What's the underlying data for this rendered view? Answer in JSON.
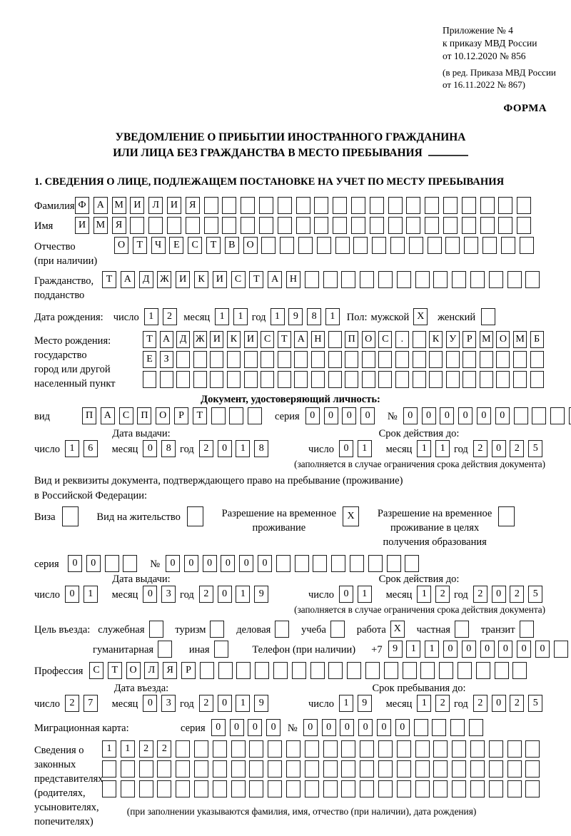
{
  "colors": {
    "background": "#ffffff",
    "ink": "#000000"
  },
  "appendix": {
    "lines": [
      "Приложение № 4",
      "к приказу МВД России",
      "от 10.12.2020 № 856"
    ],
    "edition_lines": [
      "(в ред. Приказа МВД России",
      "от 16.11.2022 № 867)"
    ],
    "form_label": "ФОРМА"
  },
  "title": {
    "line1": "УВЕДОМЛЕНИЕ О ПРИБЫТИИ ИНОСТРАННОГО ГРАЖДАНИНА",
    "line2": "ИЛИ ЛИЦА БЕЗ ГРАЖДАНСТВА В МЕСТО ПРЕБЫВАНИЯ"
  },
  "section1_heading": "1. СВЕДЕНИЯ О ЛИЦЕ, ПОДЛЕЖАЩЕМ ПОСТАНОВКЕ НА УЧЕТ ПО МЕСТУ ПРЕБЫВАНИЯ",
  "fields": {
    "surname": {
      "label": "Фамилия",
      "boxes": {
        "value": "ФАМИЛИЯ",
        "count": 25
      }
    },
    "firstname": {
      "label": "Имя",
      "boxes": {
        "value": "ИМЯ",
        "count": 25
      }
    },
    "patronymic": {
      "label": "Отчество",
      "label2": "(при наличии)",
      "boxes": {
        "value": "ОТЧЕСТВО",
        "count": 23
      }
    },
    "citizenship": {
      "label": "Гражданство,",
      "label2": "подданство",
      "boxes": {
        "value": "ТАДЖИКИСТАН",
        "count": 24
      }
    },
    "birth": {
      "label": "Дата рождения:",
      "day_label": "число",
      "day": {
        "value": "12",
        "count": 2
      },
      "month_label": "месяц",
      "month": {
        "value": "11",
        "count": 2
      },
      "year_label": "год",
      "year": {
        "value": "1981",
        "count": 4
      },
      "sex_label": "Пол:",
      "male_label": "мужской",
      "male_box": {
        "value": "X",
        "count": 1
      },
      "female_label": "женский",
      "female_box": {
        "value": "",
        "count": 1
      }
    },
    "birthplace": {
      "labels": [
        "Место рождения:",
        "государство",
        "город или другой",
        "населенный пункт"
      ],
      "row1": {
        "value": "ТАДЖИКИСТАН ПОС. КУРМОМБ",
        "count": 24
      },
      "row2": {
        "value": "ЕЗ",
        "count": 24
      },
      "row3": {
        "value": "",
        "count": 24
      }
    }
  },
  "identity_doc": {
    "heading": "Документ, удостоверяющий личность:",
    "type_label": "вид",
    "type_boxes": {
      "value": "ПАСПОРТ",
      "count": 10
    },
    "series_label": "серия",
    "series_boxes": {
      "value": "0000",
      "count": 4
    },
    "number_label": "№",
    "number_boxes": {
      "value": "000000",
      "count": 10
    },
    "issue_heading": "Дата выдачи:",
    "valid_heading": "Срок действия до:",
    "day_label": "число",
    "month_label": "месяц",
    "year_label": "год",
    "issue_day": {
      "value": "16",
      "count": 2
    },
    "issue_month": {
      "value": "08",
      "count": 2
    },
    "issue_year": {
      "value": "2018",
      "count": 4
    },
    "valid_day": {
      "value": "01",
      "count": 2
    },
    "valid_month": {
      "value": "11",
      "count": 2
    },
    "valid_year": {
      "value": "2025",
      "count": 4
    },
    "valid_note": "(заполняется в случае ограничения срока действия документа)"
  },
  "residence_doc": {
    "intro_line1": "Вид и реквизиты документа, подтверждающего право на пребывание (проживание)",
    "intro_line2": "в Российской Федерации:",
    "visa_label": "Виза",
    "visa_box": {
      "value": "",
      "count": 1
    },
    "permit_label": "Вид на жительство",
    "permit_box": {
      "value": "",
      "count": 1
    },
    "temp_lines": [
      "Разрешение на временное",
      "проживание"
    ],
    "temp_box": {
      "value": "X",
      "count": 1
    },
    "edu_lines": [
      "Разрешение на временное",
      "проживание в целях",
      "получения образования"
    ],
    "edu_box": {
      "value": "",
      "count": 1
    },
    "series_label": "серия",
    "series_boxes": {
      "value": "00",
      "count": 4
    },
    "number_label": "№",
    "number_boxes": {
      "value": "000000",
      "count": 14
    },
    "issue_heading": "Дата выдачи:",
    "valid_heading": "Срок действия до:",
    "day_label": "число",
    "month_label": "месяц",
    "year_label": "год",
    "issue_day": {
      "value": "01",
      "count": 2
    },
    "issue_month": {
      "value": "03",
      "count": 2
    },
    "issue_year": {
      "value": "2019",
      "count": 4
    },
    "valid_day": {
      "value": "01",
      "count": 2
    },
    "valid_month": {
      "value": "12",
      "count": 2
    },
    "valid_year": {
      "value": "2025",
      "count": 4
    },
    "valid_note": "(заполняется в случае ограничения срока действия документа)"
  },
  "purpose": {
    "label": "Цель въезда:",
    "options": [
      {
        "label": "служебная",
        "box": {
          "value": "",
          "count": 1
        }
      },
      {
        "label": "туризм",
        "box": {
          "value": "",
          "count": 1
        }
      },
      {
        "label": "деловая",
        "box": {
          "value": "",
          "count": 1
        }
      },
      {
        "label": "учеба",
        "box": {
          "value": "",
          "count": 1
        }
      },
      {
        "label": "работа",
        "box": {
          "value": "X",
          "count": 1
        }
      },
      {
        "label": "частная",
        "box": {
          "value": "",
          "count": 1
        }
      },
      {
        "label": "транзит",
        "box": {
          "value": "",
          "count": 1
        }
      },
      {
        "label": "гуманитарная",
        "box": {
          "value": "",
          "count": 1
        }
      },
      {
        "label": "иная",
        "box": {
          "value": "",
          "count": 1
        }
      }
    ],
    "phone_label": "Телефон (при наличии)",
    "phone_prefix": "+7",
    "phone_boxes": {
      "value": "911000000",
      "count": 10
    }
  },
  "profession": {
    "label": "Профессия",
    "boxes": {
      "value": "СТОЛЯР",
      "count": 24
    }
  },
  "entry": {
    "entry_heading": "Дата въезда:",
    "stay_heading": "Срок пребывания до:",
    "day_label": "число",
    "month_label": "месяц",
    "year_label": "год",
    "entry_day": {
      "value": "27",
      "count": 2
    },
    "entry_month": {
      "value": "03",
      "count": 2
    },
    "entry_year": {
      "value": "2019",
      "count": 4
    },
    "stay_day": {
      "value": "19",
      "count": 2
    },
    "stay_month": {
      "value": "12",
      "count": 2
    },
    "stay_year": {
      "value": "2025",
      "count": 4
    }
  },
  "migration_card": {
    "label": "Миграционная карта:",
    "series_label": "серия",
    "series_boxes": {
      "value": "0000",
      "count": 4
    },
    "number_label": "№",
    "number_boxes": {
      "value": "000000",
      "count": 10
    }
  },
  "legal_reps": {
    "labels": [
      "Сведения о",
      "законных",
      "представителях",
      "(родителях,",
      "усыновителях,",
      "попечителях)"
    ],
    "row1": {
      "value": "1122",
      "count": 24
    },
    "row2": {
      "value": "",
      "count": 24
    },
    "row3": {
      "value": "",
      "count": 24
    },
    "note": "(при заполнении указываются фамилия, имя, отчество (при наличии), дата рождения)"
  }
}
